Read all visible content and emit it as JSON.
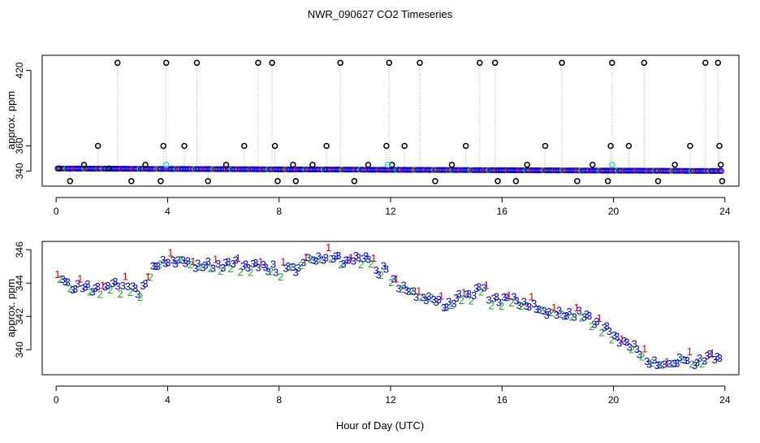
{
  "figure": {
    "title": "NWR_090627  CO2 Timeseries",
    "xlabel": "Hour of Day (UTC)"
  },
  "colors": {
    "axis": "#000000",
    "dropline": "#aaaaaa",
    "outlier": "#000000",
    "series1": "#dd0000",
    "series2": "#22aa22",
    "series3": "#0000dd",
    "highlight": "#33dddd"
  },
  "chart_data": [
    {
      "type": "scatter",
      "ylabel": "approx. ppm",
      "xlim": [
        -0.5,
        24.5
      ],
      "ylim": [
        328,
        432
      ],
      "xticks": [
        0,
        4,
        8,
        12,
        16,
        20,
        24
      ],
      "yticks": [
        340,
        360,
        420
      ],
      "series": [
        {
          "marker": "circle",
          "color": "#000000",
          "x": [
            0.1,
            0.5,
            1.0,
            1.5,
            1.9,
            2.2,
            2.7,
            3.2,
            3.75,
            3.85,
            3.95,
            4.6,
            5.05,
            5.45,
            6.1,
            6.75,
            7.25,
            7.75,
            7.85,
            7.95,
            8.5,
            8.6,
            9.2,
            9.7,
            10.2,
            10.7,
            11.2,
            11.85,
            11.95,
            12.05,
            12.5,
            13.05,
            13.6,
            14.2,
            14.7,
            15.2,
            15.75,
            15.85,
            16.5,
            16.9,
            17.55,
            18.15,
            18.7,
            19.25,
            19.8,
            19.9,
            19.95,
            20.55,
            21.1,
            21.6,
            22.2,
            22.75,
            23.3,
            23.75,
            23.8,
            23.85,
            23.9
          ],
          "y": [
            342,
            332,
            345,
            360,
            342,
            426,
            332,
            345,
            332,
            360,
            426,
            360,
            426,
            332,
            345,
            360,
            426,
            426,
            360,
            332,
            345,
            332,
            345,
            360,
            426,
            332,
            345,
            360,
            426,
            345,
            360,
            426,
            332,
            345,
            360,
            426,
            426,
            332,
            332,
            345,
            360,
            426,
            332,
            345,
            332,
            360,
            426,
            360,
            426,
            332,
            345,
            360,
            426,
            426,
            360,
            345,
            332
          ]
        }
      ],
      "baseline": {
        "marker": "circle",
        "colors": [
          "#0000dd",
          "#dd0000",
          "#22aa22"
        ],
        "x_start": 0.05,
        "x_end": 23.9,
        "start_ppm": 342,
        "end_ppm": 340
      }
    },
    {
      "type": "scatter",
      "ylabel": "approx. ppm",
      "xlim": [
        -0.5,
        24.5
      ],
      "ylim": [
        338.5,
        346.5
      ],
      "xticks": [
        0,
        4,
        8,
        12,
        16,
        20,
        24
      ],
      "yticks": [
        340,
        342,
        344,
        346
      ],
      "markers": [
        "1",
        "2",
        "3"
      ],
      "path": {
        "x": [
          0.0,
          0.3,
          0.5,
          1.0,
          1.5,
          1.8,
          2.0,
          2.3,
          2.5,
          2.8,
          3.0,
          3.5,
          3.8,
          4.0,
          4.5,
          5.0,
          5.5,
          6.0,
          6.5,
          7.0,
          7.5,
          7.8,
          8.0,
          8.3,
          8.6,
          9.0,
          9.5,
          10.0,
          10.5,
          11.0,
          11.3,
          11.5,
          11.8,
          12.0,
          12.5,
          13.0,
          13.5,
          14.0,
          14.3,
          14.6,
          15.0,
          15.3,
          15.5,
          15.8,
          16.0,
          16.5,
          17.0,
          17.5,
          18.0,
          18.5,
          19.0,
          19.5,
          20.0,
          20.5,
          21.0,
          21.3,
          21.7,
          22.0,
          22.5,
          23.0,
          23.5,
          23.9
        ],
        "y": [
          344.0,
          344.3,
          343.8,
          343.7,
          343.7,
          343.5,
          344.0,
          343.8,
          343.9,
          343.5,
          343.4,
          344.9,
          345.2,
          345.4,
          345.3,
          345.1,
          345.0,
          345.1,
          345.1,
          345.0,
          344.9,
          345.0,
          344.2,
          345.1,
          344.9,
          345.3,
          345.6,
          345.5,
          345.3,
          345.4,
          345.6,
          344.5,
          344.8,
          344.3,
          343.6,
          343.3,
          343.0,
          342.7,
          342.9,
          343.2,
          343.4,
          343.8,
          343.0,
          343.1,
          342.9,
          343.0,
          342.6,
          342.4,
          342.1,
          342.2,
          342.0,
          341.5,
          340.8,
          340.3,
          339.8,
          339.3,
          339.0,
          339.2,
          339.4,
          339.3,
          339.5,
          339.5
        ]
      }
    }
  ]
}
